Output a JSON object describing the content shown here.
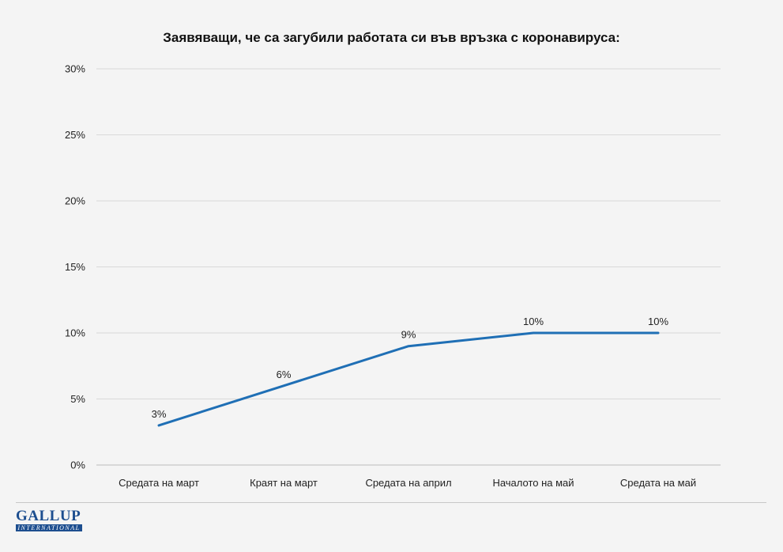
{
  "chart_data": {
    "type": "line",
    "title": "Заявяващи, че са загубили работата си във връзка с коронавируса:",
    "categories": [
      "Средата на март",
      "Краят на март",
      "Средата на април",
      "Началото на май",
      "Средата на май"
    ],
    "series": [
      {
        "values": [
          3,
          6,
          9,
          10,
          10
        ],
        "data_labels": [
          "3%",
          "6%",
          "9%",
          "10%",
          "10%"
        ],
        "color": "#1f6fb5"
      }
    ],
    "y_ticks": [
      0,
      5,
      10,
      15,
      20,
      25,
      30
    ],
    "y_tick_labels": [
      "0%",
      "5%",
      "10%",
      "15%",
      "20%",
      "25%",
      "30%"
    ],
    "ylim": [
      0,
      30
    ],
    "grid": true,
    "legend": "none"
  },
  "logo": {
    "main": "GALLUP",
    "sub": "INTERNATIONAL"
  }
}
